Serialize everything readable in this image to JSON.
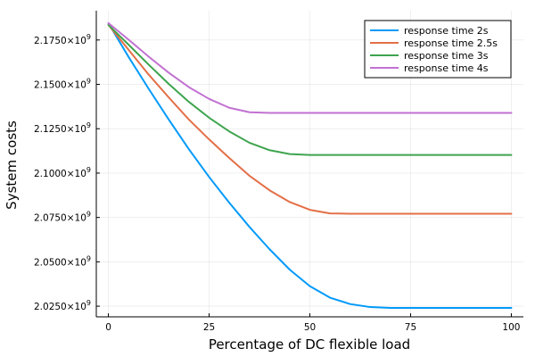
{
  "chart_data": {
    "type": "line",
    "title": "",
    "xlabel": "Percentage of DC flexible load",
    "ylabel": "System costs",
    "xlim": [
      -3,
      103
    ],
    "ylim": [
      2019000000.0,
      2191500000.0
    ],
    "grid": true,
    "legend_position": "top-right",
    "x_ticks": [
      0,
      25,
      50,
      75,
      100
    ],
    "x_tick_labels": [
      "0",
      "25",
      "50",
      "75",
      "100"
    ],
    "y_ticks": [
      2025000000.0,
      2050000000.0,
      2075000000.0,
      2100000000.0,
      2125000000.0,
      2150000000.0,
      2175000000.0
    ],
    "y_tick_mantissas": [
      "2.0250",
      "2.0500",
      "2.0750",
      "2.1000",
      "2.1250",
      "2.1500",
      "2.1750"
    ],
    "y_tick_suffix": "×10",
    "y_tick_exponent": "9",
    "x": [
      0,
      5,
      10,
      15,
      20,
      25,
      30,
      35,
      40,
      45,
      50,
      55,
      60,
      65,
      70,
      75,
      80,
      85,
      90,
      95,
      100
    ],
    "series": [
      {
        "name": "response time 2s",
        "color": "#009AFA",
        "values": [
          2184500000.0,
          2165500000.0,
          2147500000.0,
          2130100000.0,
          2113400000.0,
          2097800000.0,
          2083300000.0,
          2069700000.0,
          2057100000.0,
          2045600000.0,
          2036300000.0,
          2029800000.0,
          2026200000.0,
          2024500000.0,
          2024000000.0,
          2024000000.0,
          2024000000.0,
          2024000000.0,
          2024000000.0,
          2024000000.0,
          2024000000.0
        ]
      },
      {
        "name": "response time 2.5s",
        "color": "#E36F47",
        "values": [
          2183500000.0,
          2169500000.0,
          2155500000.0,
          2142600000.0,
          2130100000.0,
          2119000000.0,
          2108500000.0,
          2098500000.0,
          2090300000.0,
          2083700000.0,
          2079300000.0,
          2077300000.0,
          2077100000.0,
          2077100000.0,
          2077100000.0,
          2077100000.0,
          2077100000.0,
          2077100000.0,
          2077100000.0,
          2077100000.0,
          2077100000.0
        ]
      },
      {
        "name": "response time 3s",
        "color": "#3EA44E",
        "values": [
          2183500000.0,
          2172400000.0,
          2161100000.0,
          2150200000.0,
          2140100000.0,
          2131200000.0,
          2123500000.0,
          2117100000.0,
          2112900000.0,
          2110700000.0,
          2110200000.0,
          2110200000.0,
          2110200000.0,
          2110200000.0,
          2110200000.0,
          2110200000.0,
          2110200000.0,
          2110200000.0,
          2110200000.0,
          2110200000.0,
          2110200000.0
        ]
      },
      {
        "name": "response time 4s",
        "color": "#C271D2",
        "values": [
          2184500000.0,
          2175200000.0,
          2165600000.0,
          2156500000.0,
          2148400000.0,
          2141800000.0,
          2136800000.0,
          2134300000.0,
          2133900000.0,
          2133900000.0,
          2133900000.0,
          2133900000.0,
          2133900000.0,
          2133900000.0,
          2133900000.0,
          2133900000.0,
          2133900000.0,
          2133900000.0,
          2133900000.0,
          2133900000.0,
          2133900000.0
        ]
      }
    ]
  }
}
